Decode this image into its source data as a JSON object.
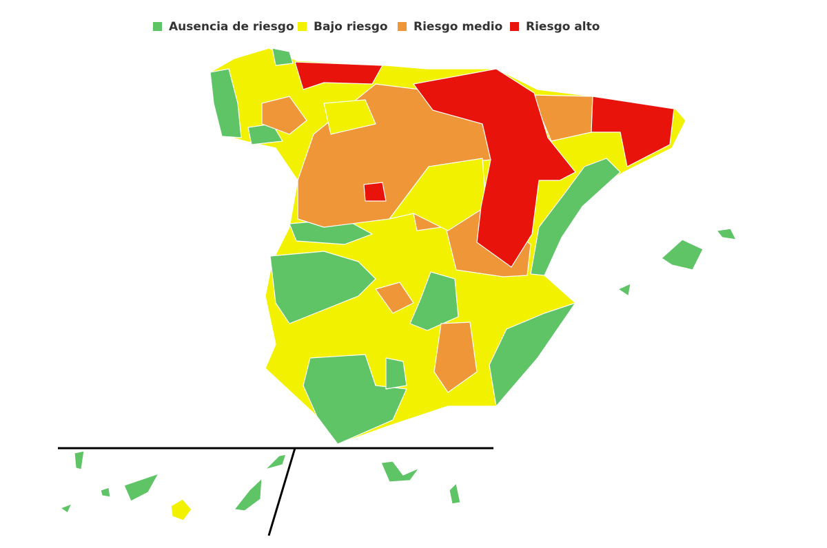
{
  "legend": {
    "items": [
      {
        "name": "Ausencia de riesgo",
        "color": "#5ec466"
      },
      {
        "name": "Bajo riesgo",
        "color": "#f2f200"
      },
      {
        "name": "Riesgo medio",
        "color": "#ef9638"
      },
      {
        "name": "Riesgo alto",
        "color": "#e8140c"
      }
    ]
  }
}
